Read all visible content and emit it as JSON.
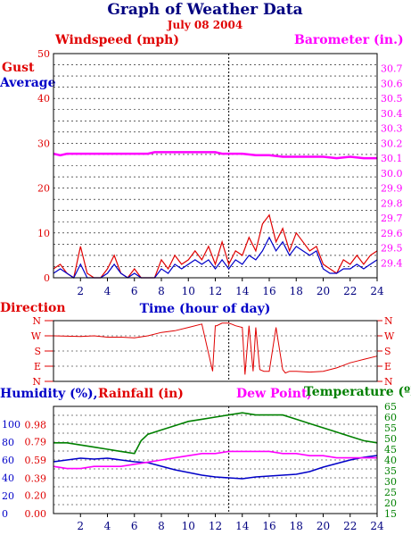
{
  "header": {
    "title": "Graph of Weather Data",
    "date": "July 08 2004"
  },
  "colors": {
    "red": "#e00000",
    "blue": "#0000c8",
    "magenta": "#ff00ff",
    "green": "#008000",
    "navy": "#000080",
    "frame": "#000000"
  },
  "chart_data": [
    {
      "id": "wind_baro",
      "type": "line",
      "left_title": "Windspeed (mph)",
      "right_title": "Barometer (in.)",
      "left_labels": [
        "Gust",
        "Average"
      ],
      "xlabel": "Time (hour of day)",
      "xlim": [
        0,
        24
      ],
      "x_ticks": [
        "2",
        "4",
        "6",
        "8",
        "10",
        "12",
        "14",
        "16",
        "18",
        "20",
        "22",
        "24"
      ],
      "y_left": {
        "lim": [
          0,
          50
        ],
        "ticks": [
          "0",
          "10",
          "20",
          "30",
          "40",
          "50"
        ]
      },
      "y_right": {
        "lim": [
          29.3,
          30.8
        ],
        "ticks": [
          "29.4",
          "29.5",
          "29.6",
          "29.7",
          "29.8",
          "29.9",
          "30.0",
          "30.1",
          "30.2",
          "30.3",
          "30.4",
          "30.5",
          "30.6",
          "30.7"
        ]
      },
      "series": [
        {
          "name": "Gust",
          "color": "#e00000",
          "x": [
            0,
            0.5,
            1,
            1.5,
            2,
            2.5,
            3,
            3.5,
            4,
            4.5,
            5,
            5.5,
            6,
            6.5,
            7,
            7.5,
            8,
            8.5,
            9,
            9.5,
            10,
            10.5,
            11,
            11.5,
            12,
            12.5,
            13,
            13.5,
            14,
            14.5,
            15,
            15.5,
            16,
            16.5,
            17,
            17.5,
            18,
            18.5,
            19,
            19.5,
            20,
            20.5,
            21,
            21.5,
            22,
            22.5,
            23,
            23.5,
            24
          ],
          "values": [
            2,
            3,
            1,
            0,
            7,
            1,
            0,
            0,
            2,
            5,
            1,
            0,
            2,
            0,
            0,
            0,
            4,
            2,
            5,
            3,
            4,
            6,
            4,
            7,
            3,
            8,
            3,
            6,
            5,
            9,
            6,
            12,
            14,
            8,
            11,
            6,
            10,
            8,
            6,
            7,
            3,
            2,
            1,
            4,
            3,
            5,
            3,
            5,
            6
          ]
        },
        {
          "name": "Average",
          "color": "#0000c8",
          "x": [
            0,
            0.5,
            1,
            1.5,
            2,
            2.5,
            3,
            3.5,
            4,
            4.5,
            5,
            5.5,
            6,
            6.5,
            7,
            7.5,
            8,
            8.5,
            9,
            9.5,
            10,
            10.5,
            11,
            11.5,
            12,
            12.5,
            13,
            13.5,
            14,
            14.5,
            15,
            15.5,
            16,
            16.5,
            17,
            17.5,
            18,
            18.5,
            19,
            19.5,
            20,
            20.5,
            21,
            21.5,
            22,
            22.5,
            23,
            23.5,
            24
          ],
          "values": [
            1,
            2,
            1,
            0,
            3,
            0,
            0,
            0,
            1,
            3,
            1,
            0,
            1,
            0,
            0,
            0,
            2,
            1,
            3,
            2,
            3,
            4,
            3,
            4,
            2,
            4,
            2,
            4,
            3,
            5,
            4,
            6,
            9,
            6,
            8,
            5,
            7,
            6,
            5,
            6,
            2,
            1,
            1,
            2,
            2,
            3,
            2,
            3,
            4
          ]
        },
        {
          "name": "Barometer",
          "color": "#ff00ff",
          "axis": "right",
          "x": [
            0,
            0.5,
            1,
            3,
            5,
            7,
            7.5,
            8,
            9,
            11,
            12,
            12.5,
            13,
            14,
            15,
            16,
            17,
            18,
            19,
            20,
            21,
            22,
            23,
            24
          ],
          "values": [
            30.13,
            30.12,
            30.13,
            30.13,
            30.13,
            30.13,
            30.14,
            30.14,
            30.14,
            30.14,
            30.14,
            30.13,
            30.13,
            30.13,
            30.12,
            30.12,
            30.11,
            30.11,
            30.11,
            30.11,
            30.1,
            30.11,
            30.1,
            30.1
          ]
        }
      ]
    },
    {
      "id": "direction",
      "type": "line",
      "left_title": "Direction",
      "xlabel": "Time (hour of day)",
      "xlim": [
        0,
        24
      ],
      "y_ticks": [
        "N",
        "W",
        "S",
        "E",
        "N"
      ],
      "ylim": [
        0,
        360
      ],
      "series": [
        {
          "name": "Direction",
          "color": "#e00000",
          "x": [
            0,
            1,
            2,
            3,
            4,
            5,
            6,
            7,
            8,
            9,
            10,
            11,
            11.8,
            12,
            12.1,
            12.5,
            12.8,
            13,
            13.2,
            13.5,
            14,
            14.2,
            14.5,
            14.8,
            15,
            15.3,
            15.6,
            16,
            16.5,
            17,
            17.2,
            17.5,
            18,
            19,
            20,
            21,
            22,
            22.5,
            23,
            24
          ],
          "values": [
            270,
            268,
            266,
            270,
            262,
            262,
            258,
            270,
            290,
            300,
            320,
            340,
            60,
            330,
            330,
            345,
            345,
            345,
            340,
            330,
            320,
            40,
            330,
            60,
            320,
            70,
            60,
            60,
            320,
            70,
            50,
            60,
            60,
            55,
            60,
            80,
            110,
            120,
            130,
            150
          ]
        }
      ]
    },
    {
      "id": "humidity",
      "type": "line",
      "titles": [
        "Humidity (%),",
        "Rainfall (in)",
        "Dew Point,",
        "Temperature (ºF)"
      ],
      "xlim": [
        0,
        24
      ],
      "x_ticks": [
        "2",
        "4",
        "6",
        "8",
        "10",
        "12",
        "14",
        "16",
        "18",
        "20",
        "22",
        "24"
      ],
      "y_humidity": {
        "lim": [
          0,
          120
        ],
        "ticks": [
          "0",
          "20",
          "40",
          "60",
          "80",
          "100"
        ]
      },
      "y_rain": {
        "lim": [
          0,
          1.18
        ],
        "ticks": [
          "0.00",
          "0.20",
          "0.39",
          "0.59",
          "0.79",
          "0.98"
        ]
      },
      "y_temp": {
        "lim": [
          15,
          65
        ],
        "ticks": [
          "15",
          "20",
          "25",
          "30",
          "35",
          "40",
          "45",
          "50",
          "55",
          "60",
          "65"
        ]
      },
      "series": [
        {
          "name": "Humidity",
          "color": "#0000c8",
          "x": [
            0,
            1,
            2,
            3,
            4,
            5,
            6,
            7,
            8,
            9,
            10,
            11,
            12,
            13,
            14,
            15,
            16,
            17,
            18,
            19,
            20,
            21,
            22,
            23,
            24
          ],
          "values": [
            58,
            60,
            62,
            61,
            62,
            60,
            58,
            57,
            53,
            49,
            46,
            43,
            41,
            40,
            39,
            41,
            42,
            43,
            44,
            47,
            52,
            56,
            60,
            63,
            65
          ]
        },
        {
          "name": "Temperature",
          "color": "#008000",
          "x": [
            0,
            1,
            2,
            3,
            4,
            5,
            6,
            6.5,
            7,
            8,
            9,
            10,
            11,
            12,
            13,
            14,
            15,
            16,
            17,
            18,
            19,
            20,
            21,
            22,
            23,
            24
          ],
          "values": [
            48,
            48,
            47,
            46,
            45,
            44,
            43,
            49,
            52,
            54,
            56,
            58,
            59,
            60,
            61,
            62,
            61,
            61,
            61,
            59,
            57,
            55,
            53,
            51,
            49,
            48
          ]
        },
        {
          "name": "Dew Point",
          "color": "#ff00ff",
          "x": [
            0,
            1,
            2,
            3,
            4,
            5,
            6,
            7,
            8,
            9,
            10,
            11,
            12,
            13,
            14,
            15,
            16,
            17,
            18,
            19,
            20,
            21,
            22,
            23,
            24
          ],
          "values": [
            37,
            36,
            36,
            37,
            37,
            37,
            38,
            39,
            40,
            41,
            42,
            43,
            43,
            44,
            44,
            44,
            44,
            43,
            43,
            42,
            42,
            41,
            41,
            41,
            41
          ]
        }
      ]
    }
  ]
}
